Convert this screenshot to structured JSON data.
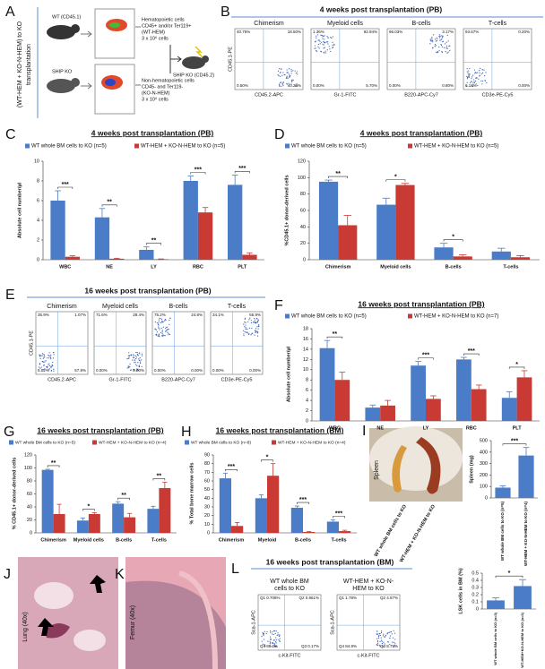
{
  "panel_a": {
    "letter": "A",
    "side_label": [
      "(WT-HEM + KO-N-HEM) to KO",
      "transplantation"
    ],
    "donor_wt": "WT (CD45.1)",
    "donor_ko": "SHIP KO",
    "hem": [
      "Hematopoietic cells",
      "CD45+ and/or Ter119+",
      "(WT-HEM)",
      "3 x 10⁶ cells"
    ],
    "nonhem": [
      "Non-hematopoietic cells",
      "CD45- and Ter119-",
      "(KO-N-HEM)",
      "3 x 10⁶ cells"
    ],
    "recipient": "SHIP KO (CD45.2)"
  },
  "flow_b": {
    "letter": "B",
    "title": "4 weeks post transplantation (PB)",
    "y_label": "CD45.1-PE",
    "plots": [
      {
        "name": "Chimerism",
        "x_label": "CD45.2-APC",
        "quadrants": [
          "40.75%",
          "18.50%",
          "0.50%",
          "40.25%"
        ]
      },
      {
        "name": "Myeloid cells",
        "x_label": "Gr-1-FITC",
        "quadrants": [
          "1.36%",
          "92.94%",
          "0.00%",
          "5.70%"
        ]
      },
      {
        "name": "B-cells",
        "x_label": "B220-APC-Cy7",
        "quadrants": [
          "96.03%",
          "3.17%",
          "0.00%",
          "0.80%"
        ]
      },
      {
        "name": "T-cells",
        "x_label": "CD3e-PE-Cy5",
        "quadrants": [
          "93.67%",
          "0.20%",
          "6.13%",
          "0.00%"
        ]
      }
    ]
  },
  "flow_e": {
    "letter": "E",
    "title": "16 weeks post transplantation (PB)",
    "y_label": "CD45.1-PE",
    "plots": [
      {
        "name": "Chimerism",
        "x_label": "CD45.2-APC",
        "quadrants": [
          "35.9%",
          "1.07%",
          "5.02%",
          "57.9%"
        ]
      },
      {
        "name": "Myeloid cells",
        "x_label": "Gr-1-FITC",
        "quadrants": [
          "71.6%",
          "28.4%",
          "0.00%",
          "0.00%"
        ]
      },
      {
        "name": "B-cells",
        "x_label": "B220-APC-Cy7",
        "quadrants": [
          "75.2%",
          "24.8%",
          "0.00%",
          "0.00%"
        ]
      },
      {
        "name": "T-cells",
        "x_label": "CD3e-PE-Cy5",
        "quadrants": [
          "34.1%",
          "65.9%",
          "0.00%",
          "0.00%"
        ]
      }
    ]
  },
  "photo_i": {
    "letter": "I",
    "label": "Spleen",
    "groups": [
      "WT whole BM cells to KO",
      "WT-HEM + KO-N-HEM to KO"
    ]
  },
  "photo_j": {
    "letter": "J",
    "label": "Lung (40x)"
  },
  "photo_k": {
    "letter": "K",
    "label": "Femur (40x)"
  },
  "flow_l": {
    "letter": "L",
    "title": "16 weeks post transplantation (BM)",
    "y_label": "Sca-1-APC",
    "plots": [
      {
        "name": [
          "WT whole BM",
          "cells to KO"
        ],
        "x_label": "c-Kit-FITC",
        "quadrants": [
          "Q1 0.708%",
          "Q2 0.861%",
          "Q4 89.2%",
          "Q3 0.17%"
        ]
      },
      {
        "name": [
          "WT-HEM + KO-N-",
          "HEM to KO"
        ],
        "x_label": "c-Kit-FITC",
        "quadrants": [
          "Q1 1.78%",
          "Q2 4.57%",
          "Q4 84.8%",
          "Q3 8.75%"
        ]
      }
    ]
  },
  "chart_data": [
    {
      "type": "bar",
      "panel": "C",
      "title": "4 weeks post transplantation (PB)",
      "y_label": "Absolute cell number/µl",
      "categories": [
        "WBC",
        "NE",
        "LY",
        "RBC",
        "PLT"
      ],
      "series": [
        {
          "name": "WT whole BM cells to KO (n=5)",
          "color": "#4a7cc7",
          "values": [
            6.0,
            4.3,
            1.0,
            8.0,
            7.6
          ],
          "errors": [
            1.0,
            0.9,
            0.3,
            0.5,
            1.0
          ]
        },
        {
          "name": "WT-HEM + KO-N-HEM to KO (n=5)",
          "color": "#c83a33",
          "values": [
            0.3,
            0.1,
            0.05,
            4.8,
            0.5
          ],
          "errors": [
            0.1,
            0.05,
            0.03,
            0.5,
            0.2
          ]
        }
      ],
      "significance": [
        "***",
        "**",
        "**",
        "***",
        "***"
      ],
      "ylim": [
        0,
        10
      ],
      "yticks": [
        0,
        2,
        4,
        6,
        8,
        10
      ]
    },
    {
      "type": "bar",
      "panel": "D",
      "title": "4 weeks post transplantation (PB)",
      "y_label": "%CD45.1+ donor-derived cells",
      "categories": [
        "Chimerism",
        "Myeloid cells",
        "B-cells",
        "T-cells"
      ],
      "series": [
        {
          "name": "WT whole BM cells to KO (n=5)",
          "color": "#4a7cc7",
          "values": [
            95,
            67,
            15,
            10
          ],
          "errors": [
            2,
            8,
            5,
            4
          ]
        },
        {
          "name": "WT-HEM + KO-N-HEM to KO (n=5)",
          "color": "#c83a33",
          "values": [
            42,
            91,
            4,
            3
          ],
          "errors": [
            12,
            2,
            2,
            2
          ]
        }
      ],
      "significance": [
        "**",
        "*",
        "*",
        null
      ],
      "ylim": [
        0,
        120
      ],
      "yticks": [
        0,
        20,
        40,
        60,
        80,
        100,
        120
      ]
    },
    {
      "type": "bar",
      "panel": "F",
      "title": "16 weeks post transplantation (PB)",
      "y_label": "Absolute cell number/µl",
      "categories": [
        "WBC",
        "NE",
        "LY",
        "RBC",
        "PLT"
      ],
      "series": [
        {
          "name": "WT whole BM cells to KO (n=5)",
          "color": "#4a7cc7",
          "values": [
            14.2,
            2.6,
            10.8,
            12.0,
            4.5
          ],
          "errors": [
            1.5,
            0.5,
            0.8,
            0.4,
            1.2
          ]
        },
        {
          "name": "WT-HEM + KO-N-HEM to KO (n=7)",
          "color": "#c83a33",
          "values": [
            8.0,
            3.0,
            4.3,
            6.2,
            8.5
          ],
          "errors": [
            1.5,
            1.0,
            0.6,
            0.8,
            1.3
          ]
        }
      ],
      "significance": [
        "**",
        null,
        "***",
        "***",
        "*"
      ],
      "ylim": [
        0,
        18
      ],
      "yticks": [
        0,
        2,
        4,
        6,
        8,
        10,
        12,
        14,
        16,
        18
      ]
    },
    {
      "type": "bar",
      "panel": "G",
      "title": "16 weeks post transplantation (PB)",
      "y_label": "% CD45.1+ donor-derived cells",
      "categories": [
        "Chimerism",
        "Myeloid cells",
        "B-cells",
        "T-cells"
      ],
      "series": [
        {
          "name": "WT whole BM cells to KO (n=5)",
          "color": "#4a7cc7",
          "values": [
            97,
            19,
            45,
            37
          ],
          "errors": [
            1,
            4,
            3,
            4
          ]
        },
        {
          "name": "WT-HEM + KO-N-HEM to KO (n=4)",
          "color": "#c83a33",
          "values": [
            29,
            29,
            24,
            69
          ],
          "errors": [
            15,
            2,
            6,
            9
          ]
        }
      ],
      "significance": [
        "**",
        "*",
        "**",
        "**"
      ],
      "ylim": [
        0,
        120
      ],
      "yticks": [
        0,
        20,
        40,
        60,
        80,
        100,
        120
      ]
    },
    {
      "type": "bar",
      "panel": "H",
      "title": "16 weeks post transplantation (BM)",
      "y_label": "% Total bone marrow cells",
      "categories": [
        "Chimerism",
        "Myeloid",
        "B-cells",
        "T-cells"
      ],
      "series": [
        {
          "name": "WT whole BM cells to KO (n=8)",
          "color": "#4a7cc7",
          "values": [
            63,
            40,
            29,
            13
          ],
          "errors": [
            6,
            4,
            2,
            2
          ]
        },
        {
          "name": "WT-HEM + KO-N-HEM to KO (n=4)",
          "color": "#c83a33",
          "values": [
            8,
            66,
            1,
            2
          ],
          "errors": [
            4,
            14,
            0.5,
            1
          ]
        }
      ],
      "significance": [
        "***",
        "*",
        "***",
        "***"
      ],
      "ylim": [
        0,
        90
      ],
      "yticks": [
        0,
        10,
        20,
        30,
        40,
        50,
        60,
        70,
        80,
        90
      ]
    },
    {
      "type": "bar",
      "y_label": "Spleen (mg)",
      "categories": [
        "WT whole BM cells to KO (n=5)",
        "WT-HEM + KO-N-HEM to KO (n=4)"
      ],
      "values": [
        90,
        370
      ],
      "errors": [
        15,
        70
      ],
      "color": "#4a7cc7",
      "significance": "***",
      "ylim": [
        0,
        500
      ],
      "yticks": [
        0,
        100,
        200,
        300,
        400,
        500
      ]
    },
    {
      "type": "bar",
      "y_label": "LSK cells in BM (%)",
      "categories": [
        "WT whole BM cells to KO (n=3)",
        "WT-HEM+KO-N-HEM to KO (n=3)"
      ],
      "values": [
        0.12,
        0.32
      ],
      "errors": [
        0.035,
        0.09
      ],
      "color": "#4a7cc7",
      "significance": "*",
      "ylim": [
        0,
        0.5
      ],
      "yticks": [
        0,
        0.1,
        0.2,
        0.3,
        0.4,
        0.5
      ]
    }
  ]
}
